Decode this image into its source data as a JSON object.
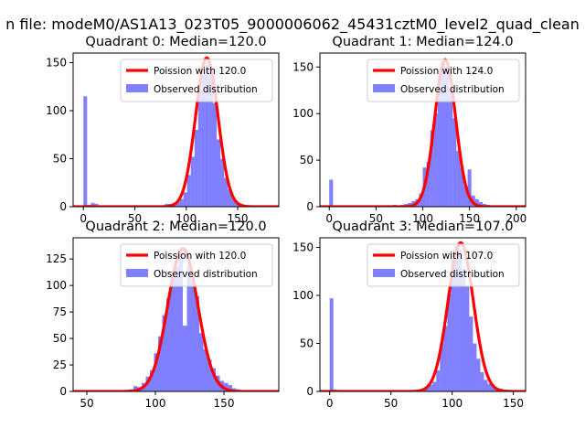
{
  "figure": {
    "suptitle": "n file: modeM0/AS1A13_023T05_9000006062_45431cztM0_level2_quad_clean"
  },
  "colors": {
    "hist": "#0000ff",
    "hist_alpha": 0.5,
    "curve": "#ff0000",
    "axes": "#000000",
    "background": "#ffffff"
  },
  "chart_data": [
    {
      "type": "bar",
      "title": "Quadrant 0: Median=120.0",
      "xlim": [
        -10,
        190
      ],
      "ylim": [
        0,
        160
      ],
      "xticks": [
        0,
        50,
        100,
        150
      ],
      "yticks": [
        0,
        50,
        100,
        150
      ],
      "legend_position": "upper right",
      "poisson_label": "Poission with 120.0",
      "observed_label": "Observed distribution",
      "poisson_mean": 120,
      "poisson_peak": 155,
      "bins": [
        {
          "x0": 0,
          "x1": 3.6,
          "count": 115
        },
        {
          "x0": 3.6,
          "x1": 7.2,
          "count": 2
        },
        {
          "x0": 7.2,
          "x1": 10.8,
          "count": 4
        },
        {
          "x0": 10.8,
          "x1": 14.4,
          "count": 3
        },
        {
          "x0": 14.4,
          "x1": 18,
          "count": 1
        },
        {
          "x0": 54,
          "x1": 57.6,
          "count": 1
        },
        {
          "x0": 72,
          "x1": 75.6,
          "count": 1
        },
        {
          "x0": 75.6,
          "x1": 79.2,
          "count": 1
        },
        {
          "x0": 79.2,
          "x1": 82.8,
          "count": 3
        },
        {
          "x0": 82.8,
          "x1": 86.4,
          "count": 3
        },
        {
          "x0": 86.4,
          "x1": 90,
          "count": 4
        },
        {
          "x0": 90,
          "x1": 93.6,
          "count": 5
        },
        {
          "x0": 93.6,
          "x1": 97.2,
          "count": 8
        },
        {
          "x0": 97.2,
          "x1": 100.8,
          "count": 15
        },
        {
          "x0": 100.8,
          "x1": 104.4,
          "count": 33
        },
        {
          "x0": 104.4,
          "x1": 108,
          "count": 52
        },
        {
          "x0": 108,
          "x1": 111.6,
          "count": 80
        },
        {
          "x0": 111.6,
          "x1": 115.2,
          "count": 122
        },
        {
          "x0": 115.2,
          "x1": 118.8,
          "count": 138
        },
        {
          "x0": 118.8,
          "x1": 122.4,
          "count": 150
        },
        {
          "x0": 122.4,
          "x1": 126,
          "count": 140
        },
        {
          "x0": 126,
          "x1": 129.6,
          "count": 108
        },
        {
          "x0": 129.6,
          "x1": 133.2,
          "count": 70
        },
        {
          "x0": 133.2,
          "x1": 136.8,
          "count": 50
        },
        {
          "x0": 136.8,
          "x1": 140.4,
          "count": 30
        },
        {
          "x0": 140.4,
          "x1": 144,
          "count": 18
        },
        {
          "x0": 144,
          "x1": 147.6,
          "count": 10
        },
        {
          "x0": 147.6,
          "x1": 151.2,
          "count": 5
        },
        {
          "x0": 151.2,
          "x1": 154.8,
          "count": 3
        },
        {
          "x0": 154.8,
          "x1": 158.4,
          "count": 2
        },
        {
          "x0": 165.6,
          "x1": 169.2,
          "count": 1
        },
        {
          "x0": 176.4,
          "x1": 180,
          "count": 1
        }
      ]
    },
    {
      "type": "bar",
      "title": "Quadrant 1: Median=124.0",
      "xlim": [
        -10,
        210
      ],
      "ylim": [
        0,
        165
      ],
      "xticks": [
        0,
        50,
        100,
        150,
        200
      ],
      "yticks": [
        0,
        50,
        100,
        150
      ],
      "legend_position": "upper right",
      "poisson_label": "Poission with 124.0",
      "observed_label": "Observed distribution",
      "poisson_mean": 124,
      "poisson_peak": 158,
      "bins": [
        {
          "x0": 0,
          "x1": 4,
          "count": 29
        },
        {
          "x0": 4,
          "x1": 8,
          "count": 1
        },
        {
          "x0": 56,
          "x1": 60,
          "count": 1
        },
        {
          "x0": 64,
          "x1": 68,
          "count": 1
        },
        {
          "x0": 68,
          "x1": 72,
          "count": 2
        },
        {
          "x0": 72,
          "x1": 76,
          "count": 1
        },
        {
          "x0": 76,
          "x1": 80,
          "count": 2
        },
        {
          "x0": 80,
          "x1": 84,
          "count": 3
        },
        {
          "x0": 84,
          "x1": 88,
          "count": 4
        },
        {
          "x0": 88,
          "x1": 92,
          "count": 6
        },
        {
          "x0": 92,
          "x1": 96,
          "count": 8
        },
        {
          "x0": 96,
          "x1": 100,
          "count": 14
        },
        {
          "x0": 100,
          "x1": 104,
          "count": 42
        },
        {
          "x0": 104,
          "x1": 108,
          "count": 48
        },
        {
          "x0": 108,
          "x1": 112,
          "count": 82
        },
        {
          "x0": 112,
          "x1": 116,
          "count": 100
        },
        {
          "x0": 116,
          "x1": 120,
          "count": 140
        },
        {
          "x0": 120,
          "x1": 124,
          "count": 155
        },
        {
          "x0": 124,
          "x1": 128,
          "count": 150
        },
        {
          "x0": 128,
          "x1": 132,
          "count": 125
        },
        {
          "x0": 132,
          "x1": 136,
          "count": 95
        },
        {
          "x0": 136,
          "x1": 140,
          "count": 60
        },
        {
          "x0": 140,
          "x1": 144,
          "count": 42
        },
        {
          "x0": 144,
          "x1": 148,
          "count": 22
        },
        {
          "x0": 148,
          "x1": 152,
          "count": 40
        },
        {
          "x0": 152,
          "x1": 156,
          "count": 12
        },
        {
          "x0": 156,
          "x1": 160,
          "count": 8
        },
        {
          "x0": 160,
          "x1": 164,
          "count": 5
        },
        {
          "x0": 164,
          "x1": 168,
          "count": 3
        },
        {
          "x0": 168,
          "x1": 172,
          "count": 2
        },
        {
          "x0": 176,
          "x1": 180,
          "count": 1
        },
        {
          "x0": 192,
          "x1": 196,
          "count": 1
        }
      ]
    },
    {
      "type": "bar",
      "title": "Quadrant 2: Median=120.0",
      "xlim": [
        40,
        190
      ],
      "ylim": [
        0,
        145
      ],
      "xticks": [
        50,
        100,
        150
      ],
      "yticks": [
        0,
        25,
        50,
        75,
        100,
        125
      ],
      "legend_position": "upper right",
      "poisson_label": "Poission with 120.0",
      "observed_label": "Observed distribution",
      "poisson_mean": 120,
      "poisson_peak": 135,
      "bins": [
        {
          "x0": 48,
          "x1": 51,
          "count": 1
        },
        {
          "x0": 63,
          "x1": 66,
          "count": 1
        },
        {
          "x0": 75,
          "x1": 78,
          "count": 1
        },
        {
          "x0": 81,
          "x1": 84,
          "count": 2
        },
        {
          "x0": 84,
          "x1": 87,
          "count": 5
        },
        {
          "x0": 87,
          "x1": 90,
          "count": 4
        },
        {
          "x0": 90,
          "x1": 93,
          "count": 8
        },
        {
          "x0": 93,
          "x1": 96,
          "count": 14
        },
        {
          "x0": 96,
          "x1": 99,
          "count": 20
        },
        {
          "x0": 99,
          "x1": 102,
          "count": 36
        },
        {
          "x0": 102,
          "x1": 105,
          "count": 52
        },
        {
          "x0": 105,
          "x1": 108,
          "count": 72
        },
        {
          "x0": 108,
          "x1": 111,
          "count": 88
        },
        {
          "x0": 111,
          "x1": 114,
          "count": 110
        },
        {
          "x0": 114,
          "x1": 117,
          "count": 118
        },
        {
          "x0": 117,
          "x1": 120,
          "count": 132
        },
        {
          "x0": 120,
          "x1": 123,
          "count": 62
        },
        {
          "x0": 123,
          "x1": 126,
          "count": 120
        },
        {
          "x0": 126,
          "x1": 129,
          "count": 106
        },
        {
          "x0": 129,
          "x1": 132,
          "count": 90
        },
        {
          "x0": 132,
          "x1": 135,
          "count": 55
        },
        {
          "x0": 135,
          "x1": 138,
          "count": 40
        },
        {
          "x0": 138,
          "x1": 141,
          "count": 30
        },
        {
          "x0": 141,
          "x1": 144,
          "count": 22
        },
        {
          "x0": 144,
          "x1": 147,
          "count": 15
        },
        {
          "x0": 147,
          "x1": 150,
          "count": 10
        },
        {
          "x0": 150,
          "x1": 153,
          "count": 8
        },
        {
          "x0": 153,
          "x1": 156,
          "count": 6
        },
        {
          "x0": 156,
          "x1": 159,
          "count": 3
        },
        {
          "x0": 159,
          "x1": 162,
          "count": 2
        },
        {
          "x0": 165,
          "x1": 168,
          "count": 1
        },
        {
          "x0": 177,
          "x1": 180,
          "count": 1
        }
      ]
    },
    {
      "type": "bar",
      "title": "Quadrant 3: Median=107.0",
      "xlim": [
        -8,
        160
      ],
      "ylim": [
        0,
        160
      ],
      "xticks": [
        0,
        50,
        100,
        150
      ],
      "yticks": [
        0,
        50,
        100,
        150
      ],
      "legend_position": "upper right",
      "poisson_label": "Poission with 107.0",
      "observed_label": "Observed distribution",
      "poisson_mean": 107,
      "poisson_peak": 155,
      "bins": [
        {
          "x0": 0,
          "x1": 3,
          "count": 97
        },
        {
          "x0": 3,
          "x1": 6,
          "count": 2
        },
        {
          "x0": 6,
          "x1": 9,
          "count": 1
        },
        {
          "x0": 51,
          "x1": 54,
          "count": 1
        },
        {
          "x0": 63,
          "x1": 66,
          "count": 1
        },
        {
          "x0": 69,
          "x1": 72,
          "count": 1
        },
        {
          "x0": 72,
          "x1": 75,
          "count": 2
        },
        {
          "x0": 75,
          "x1": 78,
          "count": 3
        },
        {
          "x0": 78,
          "x1": 81,
          "count": 4
        },
        {
          "x0": 81,
          "x1": 84,
          "count": 7
        },
        {
          "x0": 84,
          "x1": 87,
          "count": 10
        },
        {
          "x0": 87,
          "x1": 90,
          "count": 22
        },
        {
          "x0": 90,
          "x1": 93,
          "count": 50
        },
        {
          "x0": 93,
          "x1": 96,
          "count": 68
        },
        {
          "x0": 96,
          "x1": 99,
          "count": 102
        },
        {
          "x0": 99,
          "x1": 102,
          "count": 142
        },
        {
          "x0": 102,
          "x1": 105,
          "count": 152
        },
        {
          "x0": 105,
          "x1": 108,
          "count": 148
        },
        {
          "x0": 108,
          "x1": 111,
          "count": 128
        },
        {
          "x0": 111,
          "x1": 114,
          "count": 110
        },
        {
          "x0": 114,
          "x1": 117,
          "count": 78
        },
        {
          "x0": 117,
          "x1": 120,
          "count": 50
        },
        {
          "x0": 120,
          "x1": 123,
          "count": 34
        },
        {
          "x0": 123,
          "x1": 126,
          "count": 20
        },
        {
          "x0": 126,
          "x1": 129,
          "count": 12
        },
        {
          "x0": 129,
          "x1": 132,
          "count": 8
        },
        {
          "x0": 132,
          "x1": 135,
          "count": 6
        },
        {
          "x0": 135,
          "x1": 138,
          "count": 4
        },
        {
          "x0": 138,
          "x1": 141,
          "count": 3
        },
        {
          "x0": 141,
          "x1": 144,
          "count": 2
        },
        {
          "x0": 147,
          "x1": 150,
          "count": 1
        }
      ]
    }
  ]
}
